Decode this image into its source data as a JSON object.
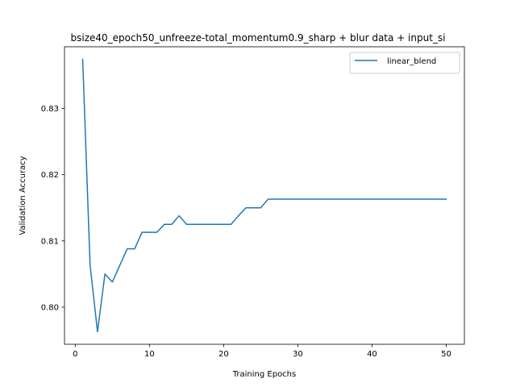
{
  "chart_data": {
    "type": "line",
    "title": "bsize40_epoch50_unfreeze-total_momentum0.9_sharp + blur data + input_si",
    "xlabel": "Training Epochs",
    "ylabel": "Validation Accuracy",
    "xlim": [
      -1.45,
      52.45
    ],
    "ylim": [
      0.7944,
      0.8393
    ],
    "x_ticks": [
      0,
      10,
      20,
      30,
      40,
      50
    ],
    "y_ticks": [
      0.8,
      0.81,
      0.82,
      0.83
    ],
    "x_tick_labels": [
      "0",
      "10",
      "20",
      "30",
      "40",
      "50"
    ],
    "y_tick_labels": [
      "0.80",
      "0.81",
      "0.82",
      "0.83"
    ],
    "grid": false,
    "legend_position": "top-right",
    "series": [
      {
        "name": "linear_blend",
        "color": "#1f77b4",
        "x": [
          1,
          2,
          3,
          4,
          5,
          6,
          7,
          8,
          9,
          10,
          11,
          12,
          13,
          14,
          15,
          16,
          17,
          18,
          19,
          20,
          21,
          22,
          23,
          24,
          25,
          26,
          27,
          28,
          29,
          30,
          31,
          32,
          33,
          34,
          35,
          36,
          37,
          38,
          39,
          40,
          41,
          42,
          43,
          44,
          45,
          46,
          47,
          48,
          49,
          50
        ],
        "y": [
          0.8374,
          0.8063,
          0.7963,
          0.805,
          0.8038,
          0.8063,
          0.8088,
          0.8088,
          0.8113,
          0.8113,
          0.8113,
          0.8125,
          0.8125,
          0.8138,
          0.8125,
          0.8125,
          0.8125,
          0.8125,
          0.8125,
          0.8125,
          0.8125,
          0.8138,
          0.815,
          0.815,
          0.815,
          0.8163,
          0.8163,
          0.8163,
          0.8163,
          0.8163,
          0.8163,
          0.8163,
          0.8163,
          0.8163,
          0.8163,
          0.8163,
          0.8163,
          0.8163,
          0.8163,
          0.8163,
          0.8163,
          0.8163,
          0.8163,
          0.8163,
          0.8163,
          0.8163,
          0.8163,
          0.8163,
          0.8163,
          0.8163
        ]
      }
    ]
  }
}
